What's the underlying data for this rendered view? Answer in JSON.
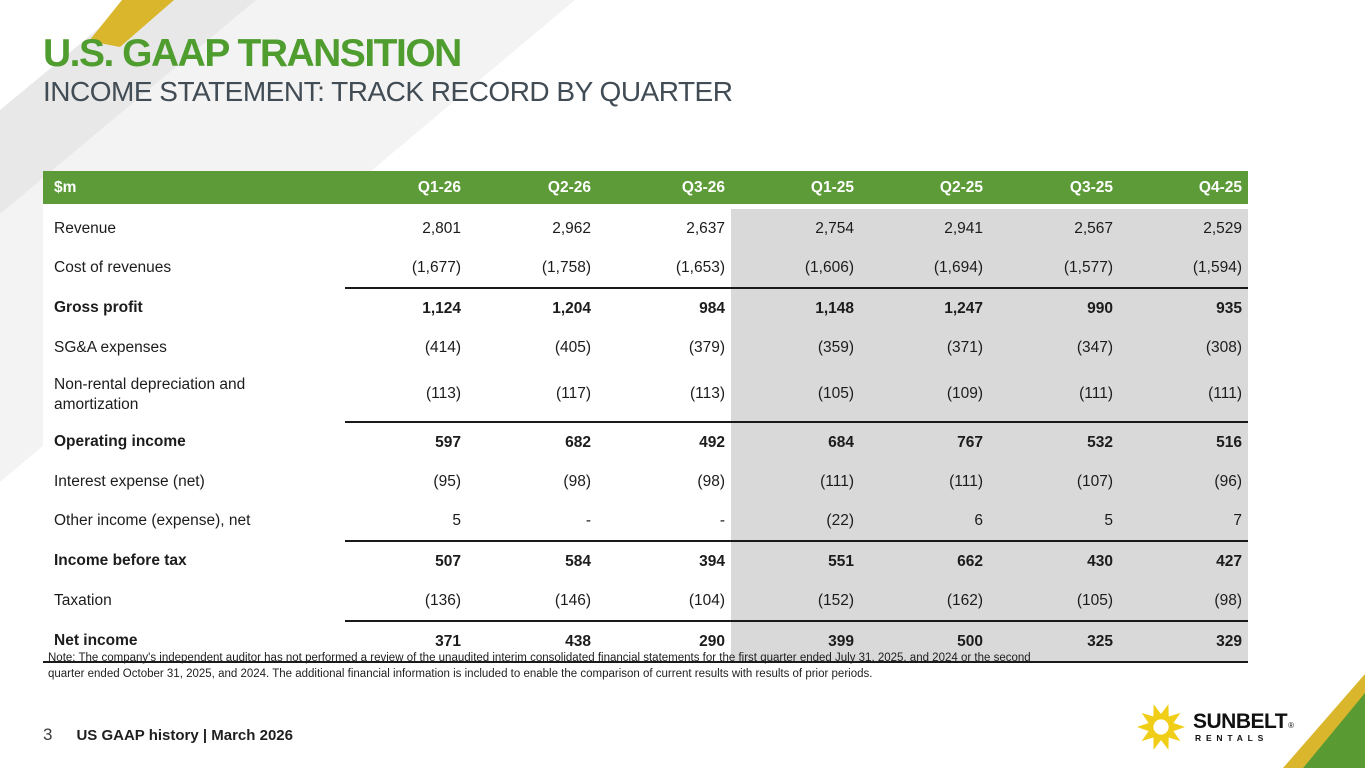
{
  "slide": {
    "title": "U.S. GAAP TRANSITION",
    "subtitle": "INCOME STATEMENT: TRACK RECORD BY QUARTER",
    "note": "Note: The company's independent auditor has not performed a review of the unaudited interim consolidated financial statements for the first quarter ended July 31, 2025, and 2024 or the second quarter ended October 31, 2025, and 2024. The additional financial information is included to enable the comparison of current results with results of prior periods.",
    "page_number": "3",
    "footer_label": "US GAAP history | March 2026"
  },
  "logo": {
    "icon": "sun-icon",
    "brand": "SUNBELT",
    "registered": "®",
    "sub": "RENTALS"
  },
  "colors": {
    "title_green": "#4f9d2f",
    "header_green": "#5c9b38",
    "highlight_gray": "#d9d9d9",
    "stripe_yellow": "#d9b62b",
    "corner_green": "#5a9a33",
    "sun_yellow": "#f0cd17",
    "subtitle_slate": "#414c55",
    "rule_black": "#1a1a1a"
  },
  "chart_data": {
    "type": "table",
    "unit_label": "$m",
    "columns": [
      "Q1-26",
      "Q2-26",
      "Q3-26",
      "Q1-25",
      "Q2-25",
      "Q3-25",
      "Q4-25"
    ],
    "highlighted_columns": [
      "Q1-25",
      "Q2-25",
      "Q3-25",
      "Q4-25"
    ],
    "rows": [
      {
        "label": "Revenue",
        "values": [
          "2,801",
          "2,962",
          "2,637",
          "2,754",
          "2,941",
          "2,567",
          "2,529"
        ],
        "bold": false,
        "rule_above": false,
        "tall": false
      },
      {
        "label": "Cost of revenues",
        "values": [
          "(1,677)",
          "(1,758)",
          "(1,653)",
          "(1,606)",
          "(1,694)",
          "(1,577)",
          "(1,594)"
        ],
        "bold": false,
        "rule_above": false,
        "tall": false
      },
      {
        "label": "Gross profit",
        "values": [
          "1,124",
          "1,204",
          "984",
          "1,148",
          "1,247",
          "990",
          "935"
        ],
        "bold": true,
        "rule_above": true,
        "tall": false
      },
      {
        "label": "SG&A expenses",
        "values": [
          "(414)",
          "(405)",
          "(379)",
          "(359)",
          "(371)",
          "(347)",
          "(308)"
        ],
        "bold": false,
        "rule_above": false,
        "tall": false
      },
      {
        "label": "Non-rental depreciation and amortization",
        "values": [
          "(113)",
          "(117)",
          "(113)",
          "(105)",
          "(109)",
          "(111)",
          "(111)"
        ],
        "bold": false,
        "rule_above": false,
        "tall": true
      },
      {
        "label": "Operating income",
        "values": [
          "597",
          "682",
          "492",
          "684",
          "767",
          "532",
          "516"
        ],
        "bold": true,
        "rule_above": true,
        "tall": false
      },
      {
        "label": "Interest expense (net)",
        "values": [
          "(95)",
          "(98)",
          "(98)",
          "(111)",
          "(111)",
          "(107)",
          "(96)"
        ],
        "bold": false,
        "rule_above": false,
        "tall": false
      },
      {
        "label": "Other income (expense), net",
        "values": [
          "5",
          "-",
          "-",
          "(22)",
          "6",
          "5",
          "7"
        ],
        "bold": false,
        "rule_above": false,
        "tall": false
      },
      {
        "label": "Income before tax",
        "values": [
          "507",
          "584",
          "394",
          "551",
          "662",
          "430",
          "427"
        ],
        "bold": true,
        "rule_above": true,
        "tall": false
      },
      {
        "label": "Taxation",
        "values": [
          "(136)",
          "(146)",
          "(104)",
          "(152)",
          "(162)",
          "(105)",
          "(98)"
        ],
        "bold": false,
        "rule_above": false,
        "tall": false
      },
      {
        "label": "Net income",
        "values": [
          "371",
          "438",
          "290",
          "399",
          "500",
          "325",
          "329"
        ],
        "bold": true,
        "rule_above": true,
        "tall": false
      }
    ]
  }
}
